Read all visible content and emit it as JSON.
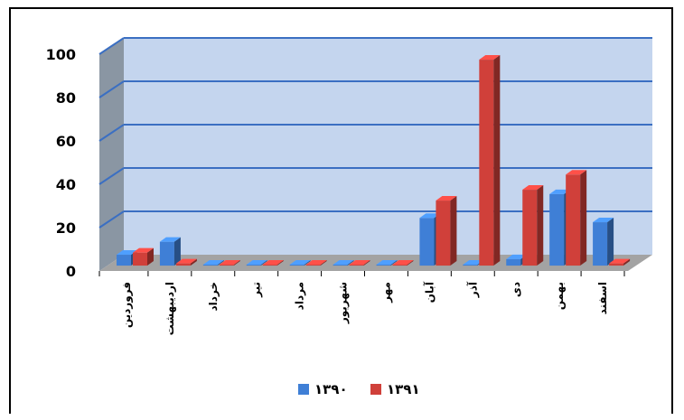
{
  "chart_data": {
    "type": "bar",
    "title": "",
    "xlabel": "",
    "ylabel": "",
    "ylim": [
      0,
      100
    ],
    "y_ticks": [
      "0",
      "20",
      "40",
      "60",
      "80",
      "100"
    ],
    "grid": true,
    "legend_position": "bottom",
    "categories": [
      "فروردین",
      "اردیبهشت",
      "خرداد",
      "تیر",
      "مرداد",
      "شهریور",
      "مهر",
      "آبان",
      "آذر",
      "دی",
      "بهمن",
      "اسفند"
    ],
    "series": [
      {
        "name": "۱۳۹۰",
        "color": "#3f7fd6",
        "values": [
          5,
          11,
          0,
          0,
          0,
          0,
          0,
          22,
          0,
          3,
          33,
          20
        ]
      },
      {
        "name": "۱۳۹۱",
        "color": "#d0403a",
        "values": [
          6,
          1,
          0,
          0,
          0,
          0,
          0,
          30,
          95,
          35,
          42,
          1
        ]
      }
    ]
  }
}
